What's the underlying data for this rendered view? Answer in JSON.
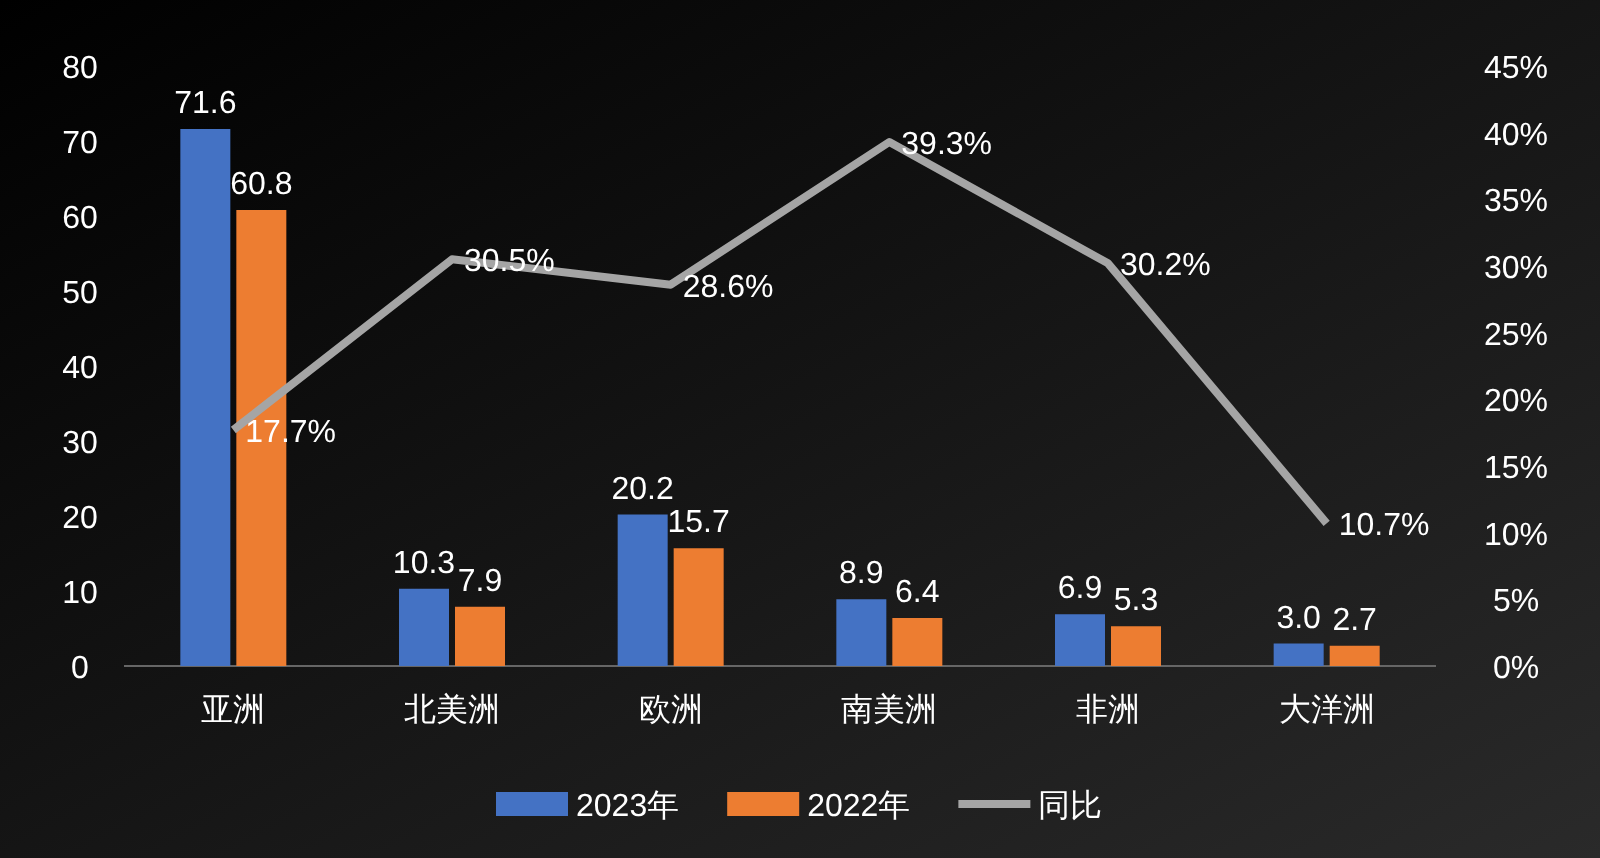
{
  "chart_data": {
    "type": "bar",
    "categories": [
      "亚洲",
      "北美洲",
      "欧洲",
      "南美洲",
      "非洲",
      "大洋洲"
    ],
    "series": [
      {
        "name": "2023年",
        "color": "#4472c4",
        "values": [
          71.6,
          10.3,
          20.2,
          8.9,
          6.9,
          3.0
        ],
        "value_labels": [
          "71.6",
          "10.3",
          "20.2",
          "8.9",
          "6.9",
          "3.0"
        ]
      },
      {
        "name": "2022年",
        "color": "#ed7d31",
        "values": [
          60.8,
          7.9,
          15.7,
          6.4,
          5.3,
          2.7
        ],
        "value_labels": [
          "60.8",
          "7.9",
          "15.7",
          "6.4",
          "5.3",
          "2.7"
        ]
      },
      {
        "name": "同比",
        "color": "#a5a5a5",
        "type": "line",
        "axis": "y2",
        "values": [
          17.7,
          30.5,
          28.6,
          39.3,
          30.2,
          10.7
        ],
        "value_labels": [
          "17.7%",
          "30.5%",
          "28.6%",
          "39.3%",
          "30.2%",
          "10.7%"
        ]
      }
    ],
    "ylim": [
      0,
      80
    ],
    "yticks": [
      0,
      10,
      20,
      30,
      40,
      50,
      60,
      70,
      80
    ],
    "y2lim": [
      0,
      45
    ],
    "y2ticks": [
      {
        "value": 0,
        "label": "0%"
      },
      {
        "value": 5,
        "label": "5%"
      },
      {
        "value": 10,
        "label": "10%"
      },
      {
        "value": 15,
        "label": "15%"
      },
      {
        "value": 20,
        "label": "20%"
      },
      {
        "value": 25,
        "label": "25%"
      },
      {
        "value": 30,
        "label": "30%"
      },
      {
        "value": 35,
        "label": "35%"
      },
      {
        "value": 40,
        "label": "40%"
      },
      {
        "value": 45,
        "label": "45%"
      }
    ],
    "grid": false,
    "legend": "bottom",
    "marker": "none"
  }
}
